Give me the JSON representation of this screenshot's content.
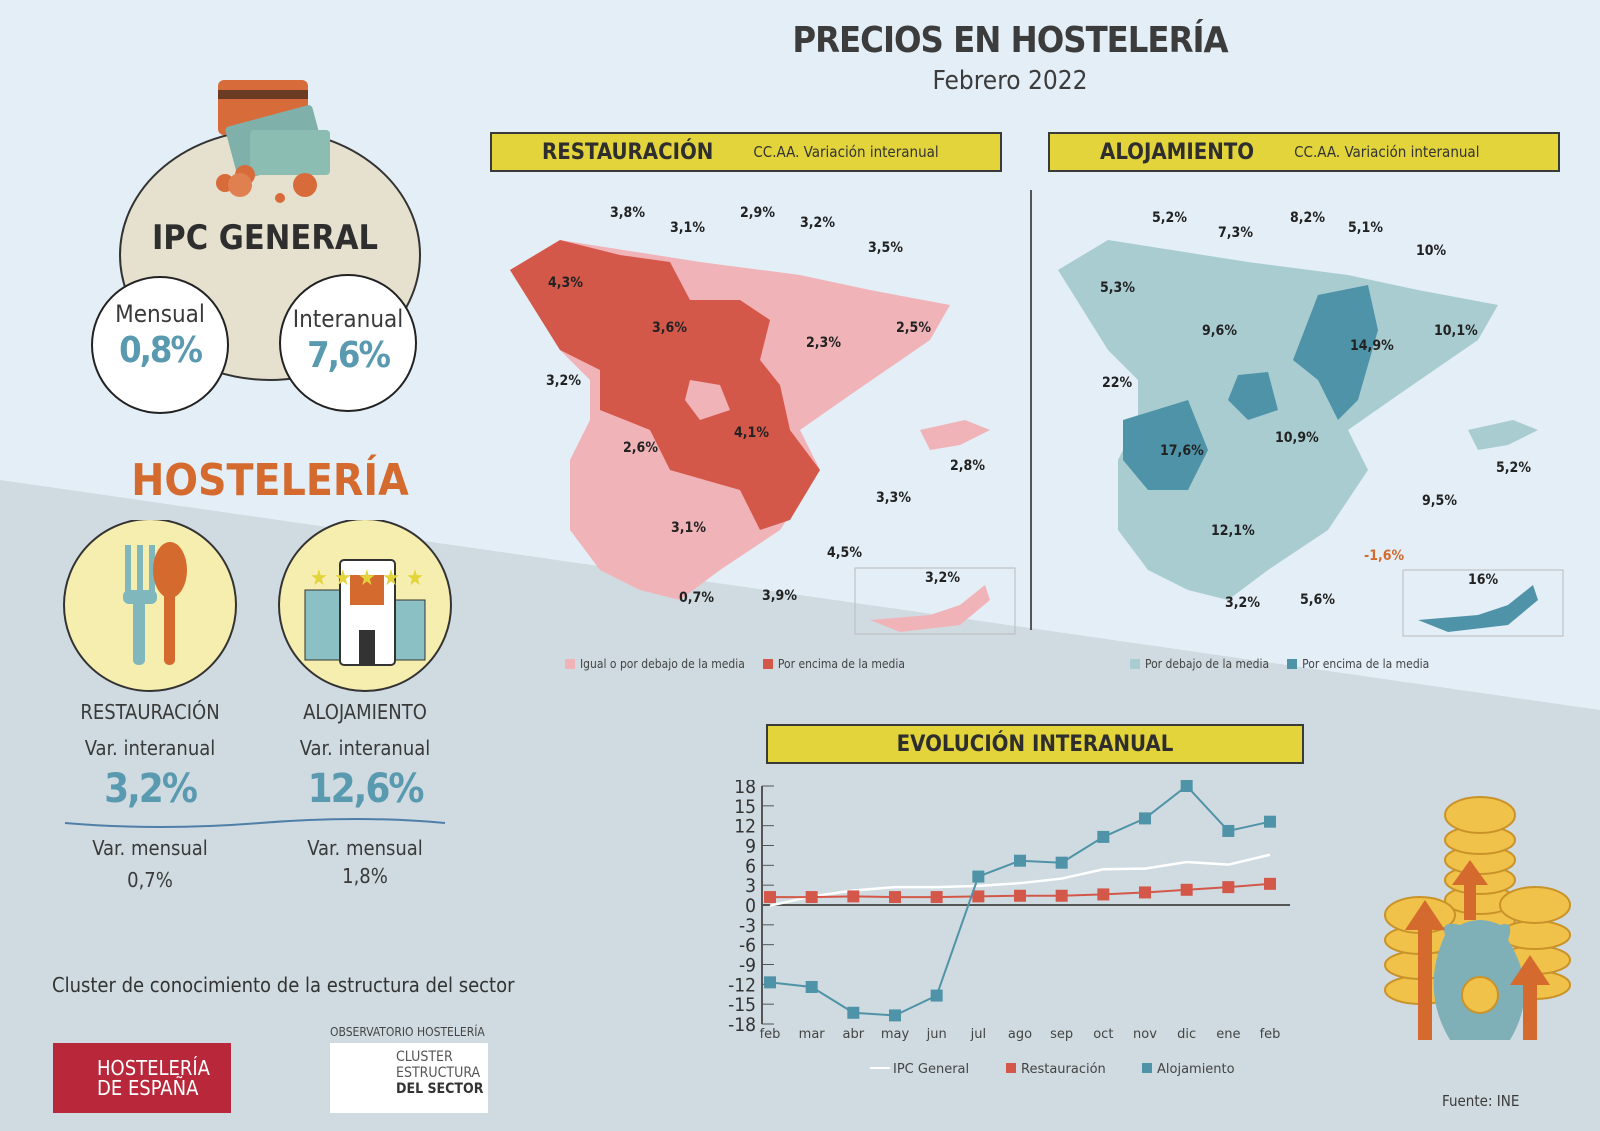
{
  "header": {
    "title": "PRECIOS EN HOSTELERÍA",
    "subtitle": "Febrero 2022"
  },
  "ipc": {
    "title": "IPC GENERAL",
    "monthly_label": "Mensual",
    "monthly_value": "0,8%",
    "annual_label": "Interanual",
    "annual_value": "7,6%"
  },
  "hosteleria": {
    "title": "HOSTELERÍA",
    "restauracion": {
      "label": "RESTAURACIÓN",
      "annual_label": "Var. interanual",
      "annual_value": "3,2%",
      "monthly_label": "Var. mensual",
      "monthly_value": "0,7%"
    },
    "alojamiento": {
      "label": "ALOJAMIENTO",
      "annual_label": "Var. interanual",
      "annual_value": "12,6%",
      "monthly_label": "Var. mensual",
      "monthly_value": "1,8%"
    }
  },
  "map_restauracion": {
    "title": "RESTAURACIÓN",
    "subtitle": "CC.AA. Variación interanual",
    "labels": [
      "3,8%",
      "3,1%",
      "2,9%",
      "3,2%",
      "3,5%",
      "4,3%",
      "3,6%",
      "2,3%",
      "2,5%",
      "3,2%",
      "4,1%",
      "2,6%",
      "2,8%",
      "3,3%",
      "3,1%",
      "4,5%",
      "3,2%",
      "0,7%",
      "3,9%"
    ],
    "legend": [
      "Igual o por debajo de la media",
      "Por encima de la media"
    ],
    "colors": [
      "#f0b3b8",
      "#d4584a"
    ]
  },
  "map_alojamiento": {
    "title": "ALOJAMIENTO",
    "subtitle": "CC.AA. Variación interanual",
    "labels": [
      "5,2%",
      "7,3%",
      "8,2%",
      "5,1%",
      "10%",
      "5,3%",
      "9,6%",
      "14,9%",
      "10,1%",
      "22%",
      "17,6%",
      "10,9%",
      "5,2%",
      "9,5%",
      "12,1%",
      "-1,6%",
      "16%",
      "3,2%",
      "5,6%"
    ],
    "legend": [
      "Por debajo de la media",
      "Por encima de la media"
    ],
    "colors": [
      "#a9ccd1",
      "#4f93a8"
    ]
  },
  "chart_data": {
    "type": "line",
    "title": "EVOLUCIÓN INTERANUAL",
    "categories": [
      "feb",
      "mar",
      "abr",
      "may",
      "jun",
      "jul",
      "ago",
      "sep",
      "oct",
      "nov",
      "dic",
      "ene",
      "feb"
    ],
    "ylim": [
      -18,
      18
    ],
    "yticks": [
      18,
      15,
      12,
      9,
      6,
      3,
      0,
      -3,
      -6,
      -9,
      -12,
      -15,
      -18
    ],
    "series": [
      {
        "name": "IPC General",
        "color": "#ffffff",
        "values": [
          -0.1,
          1.3,
          2.2,
          2.7,
          2.7,
          2.9,
          3.3,
          4.0,
          5.4,
          5.5,
          6.5,
          6.1,
          7.6
        ]
      },
      {
        "name": "Restauración",
        "color": "#d4584a",
        "values": [
          1.2,
          1.2,
          1.3,
          1.2,
          1.2,
          1.3,
          1.4,
          1.4,
          1.6,
          1.9,
          2.3,
          2.7,
          3.2
        ]
      },
      {
        "name": "Alojamiento",
        "color": "#4f93a8",
        "values": [
          -11.7,
          -12.4,
          -16.3,
          -16.7,
          -13.7,
          4.3,
          6.7,
          6.4,
          10.3,
          13.1,
          18.0,
          11.2,
          12.6
        ]
      }
    ],
    "legend_position": "bottom",
    "grid": false
  },
  "footer": {
    "cluster_text": "Cluster de conocimiento de la estructura del sector",
    "logo1": "HOSTELERÍA DE ESPAÑA",
    "observatorio": "OBSERVATORIO HOSTELERÍA",
    "logo2_lines": [
      "CLUSTER",
      "ESTRUCTURA",
      "DEL SECTOR"
    ],
    "source": "Fuente: INE"
  }
}
